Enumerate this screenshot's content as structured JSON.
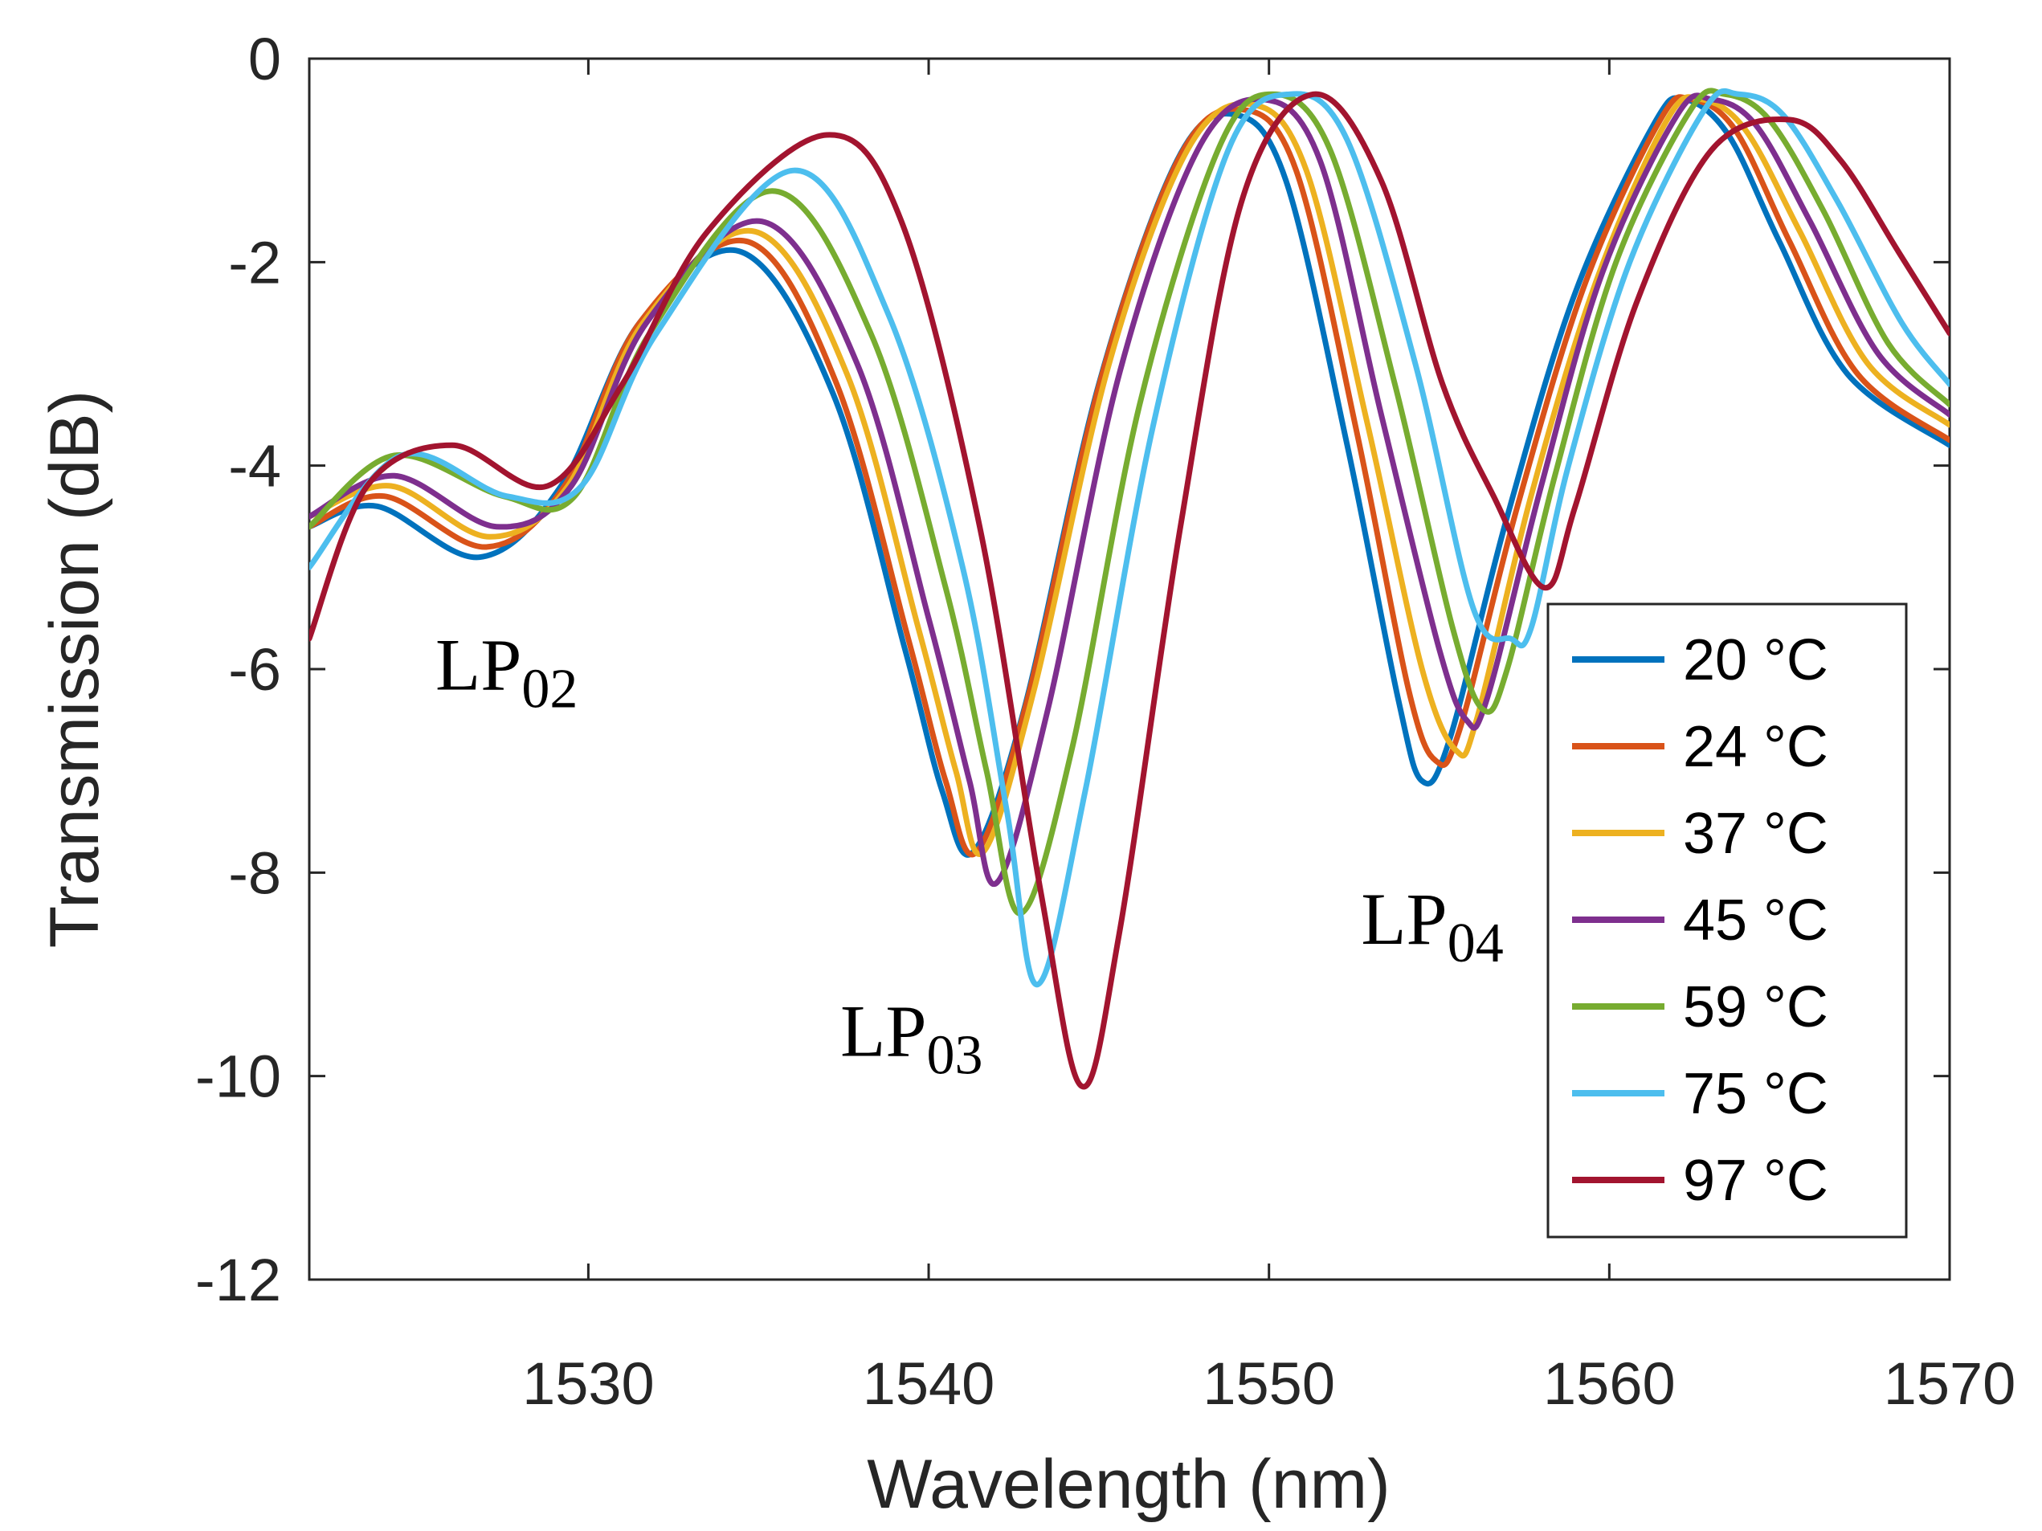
{
  "chart_data": {
    "type": "line",
    "title": "",
    "xlabel": "Wavelength (nm)",
    "ylabel": "Transmission (dB)",
    "xlim": [
      1521.8,
      1570
    ],
    "ylim": [
      -12,
      0
    ],
    "xticks": [
      1530,
      1540,
      1550,
      1560,
      1570
    ],
    "yticks": [
      0,
      -2,
      -4,
      -6,
      -8,
      -10,
      -12
    ],
    "grid": false,
    "legend_position": "bottom-right",
    "annotations": [
      {
        "text": "LP",
        "subscript": "02",
        "x": 1527.6,
        "y": -6.2
      },
      {
        "text": "LP",
        "subscript": "03",
        "x": 1539.5,
        "y": -9.8
      },
      {
        "text": "LP",
        "subscript": "04",
        "x": 1554.8,
        "y": -8.7
      }
    ],
    "series": [
      {
        "name": "20 °C",
        "color": "#0072BD",
        "x": [
          1521.8,
          1523.8,
          1526.8,
          1529.2,
          1531.5,
          1534.5,
          1537.2,
          1539.3,
          1540.4,
          1541.3,
          1542.8,
          1545.0,
          1547.3,
          1549.0,
          1550.5,
          1552.3,
          1553.8,
          1554.5,
          1555.3,
          1557.0,
          1559.0,
          1561.3,
          1562.2,
          1563.5,
          1565.0,
          1567.0,
          1570.0
        ],
        "values": [
          -4.6,
          -4.4,
          -4.9,
          -4.2,
          -2.6,
          -1.9,
          -3.3,
          -5.8,
          -7.2,
          -7.8,
          -6.4,
          -3.2,
          -1.0,
          -0.55,
          -1.2,
          -3.8,
          -6.3,
          -7.1,
          -6.7,
          -4.5,
          -2.3,
          -0.65,
          -0.4,
          -0.75,
          -1.8,
          -3.1,
          -3.8
        ]
      },
      {
        "name": "24 °C",
        "color": "#D95319",
        "x": [
          1521.8,
          1524.0,
          1527.0,
          1529.3,
          1531.5,
          1534.7,
          1537.3,
          1539.4,
          1540.5,
          1541.4,
          1542.9,
          1545.1,
          1547.4,
          1549.2,
          1550.8,
          1552.6,
          1554.1,
          1554.9,
          1555.6,
          1557.3,
          1559.3,
          1561.5,
          1562.4,
          1563.7,
          1565.3,
          1567.3,
          1570.0
        ],
        "values": [
          -4.6,
          -4.3,
          -4.8,
          -4.2,
          -2.6,
          -1.8,
          -3.2,
          -5.7,
          -7.1,
          -7.8,
          -6.3,
          -3.1,
          -0.95,
          -0.5,
          -1.1,
          -3.7,
          -6.2,
          -6.9,
          -6.6,
          -4.4,
          -2.2,
          -0.6,
          -0.4,
          -0.7,
          -1.8,
          -3.1,
          -3.75
        ]
      },
      {
        "name": "37 °C",
        "color": "#EDB120",
        "x": [
          1521.8,
          1524.2,
          1527.1,
          1529.4,
          1531.6,
          1534.9,
          1537.6,
          1539.7,
          1540.8,
          1541.6,
          1543.1,
          1545.3,
          1547.6,
          1549.5,
          1551.1,
          1552.9,
          1554.5,
          1555.5,
          1556.1,
          1557.7,
          1559.6,
          1561.7,
          1562.7,
          1564.0,
          1565.6,
          1567.6,
          1570.0
        ],
        "values": [
          -4.5,
          -4.2,
          -4.7,
          -4.2,
          -2.6,
          -1.7,
          -3.1,
          -5.6,
          -7.0,
          -7.8,
          -6.2,
          -3.0,
          -0.9,
          -0.45,
          -1.1,
          -3.6,
          -6.0,
          -6.8,
          -6.5,
          -4.3,
          -2.2,
          -0.6,
          -0.4,
          -0.7,
          -1.7,
          -3.0,
          -3.6
        ]
      },
      {
        "name": "45 °C",
        "color": "#7E2F8E",
        "x": [
          1521.8,
          1524.3,
          1527.3,
          1529.5,
          1531.7,
          1535.1,
          1537.9,
          1540.0,
          1541.2,
          1542.0,
          1543.5,
          1545.6,
          1547.9,
          1549.8,
          1551.5,
          1553.3,
          1555.0,
          1555.8,
          1556.4,
          1558.0,
          1559.8,
          1562.0,
          1563.0,
          1564.3,
          1565.9,
          1567.9,
          1570.0
        ],
        "values": [
          -4.5,
          -4.1,
          -4.6,
          -4.2,
          -2.6,
          -1.6,
          -3.0,
          -5.5,
          -7.1,
          -8.1,
          -6.4,
          -3.1,
          -0.9,
          -0.4,
          -1.0,
          -3.5,
          -5.8,
          -6.5,
          -6.3,
          -4.2,
          -2.1,
          -0.55,
          -0.4,
          -0.65,
          -1.6,
          -2.9,
          -3.5
        ]
      },
      {
        "name": "59 °C",
        "color": "#77AC30",
        "x": [
          1521.8,
          1524.3,
          1527.5,
          1529.6,
          1531.8,
          1535.4,
          1538.3,
          1540.5,
          1541.7,
          1542.7,
          1544.2,
          1546.2,
          1548.5,
          1550.1,
          1551.8,
          1553.7,
          1555.4,
          1556.3,
          1557.0,
          1558.4,
          1560.2,
          1562.4,
          1563.4,
          1564.7,
          1566.3,
          1568.2,
          1570.0
        ],
        "values": [
          -4.6,
          -3.9,
          -4.3,
          -4.3,
          -2.7,
          -1.3,
          -2.7,
          -5.2,
          -7.0,
          -8.4,
          -6.8,
          -3.4,
          -0.9,
          -0.35,
          -0.9,
          -3.2,
          -5.6,
          -6.4,
          -6.0,
          -4.1,
          -2.0,
          -0.5,
          -0.35,
          -0.6,
          -1.5,
          -2.8,
          -3.4
        ]
      },
      {
        "name": "75 °C",
        "color": "#4DBEEE",
        "x": [
          1521.8,
          1524.5,
          1527.6,
          1529.8,
          1532.0,
          1536.0,
          1538.8,
          1541.0,
          1542.3,
          1543.2,
          1544.6,
          1546.6,
          1548.8,
          1550.6,
          1552.3,
          1554.3,
          1556.0,
          1557.1,
          1557.7,
          1558.8,
          1560.6,
          1562.8,
          1563.8,
          1565.1,
          1566.7,
          1568.6,
          1570.0
        ],
        "values": [
          -5.0,
          -3.9,
          -4.3,
          -4.2,
          -2.7,
          -1.1,
          -2.5,
          -5.0,
          -7.4,
          -9.1,
          -7.2,
          -3.6,
          -0.9,
          -0.35,
          -0.8,
          -3.0,
          -5.4,
          -5.7,
          -5.6,
          -4.0,
          -2.0,
          -0.5,
          -0.35,
          -0.55,
          -1.4,
          -2.6,
          -3.2
        ]
      },
      {
        "name": "97 °C",
        "color": "#A2142F",
        "x": [
          1521.8,
          1523.5,
          1526.0,
          1528.8,
          1531.0,
          1533.5,
          1537.0,
          1539.2,
          1541.5,
          1543.3,
          1544.5,
          1545.6,
          1547.4,
          1549.2,
          1551.3,
          1553.3,
          1555.1,
          1556.6,
          1558.1,
          1559.0,
          1560.8,
          1563.0,
          1565.3,
          1566.8,
          1568.5,
          1570.0
        ],
        "values": [
          -5.7,
          -4.2,
          -3.8,
          -4.2,
          -3.2,
          -1.7,
          -0.75,
          -1.6,
          -4.6,
          -8.2,
          -10.1,
          -8.6,
          -4.6,
          -1.4,
          -0.35,
          -1.2,
          -3.2,
          -4.3,
          -5.2,
          -4.4,
          -2.4,
          -0.9,
          -0.6,
          -1.0,
          -1.9,
          -2.7
        ]
      }
    ]
  }
}
